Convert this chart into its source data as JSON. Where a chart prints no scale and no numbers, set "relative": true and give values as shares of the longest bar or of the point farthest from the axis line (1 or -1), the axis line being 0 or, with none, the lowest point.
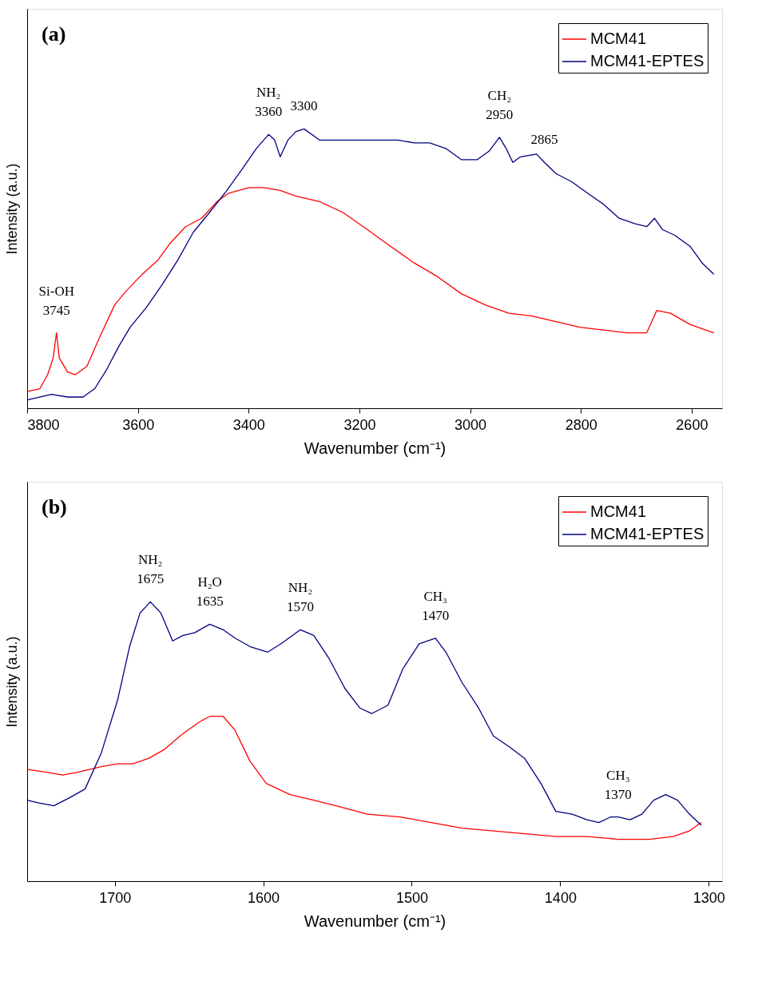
{
  "chart_data": [
    {
      "type": "line",
      "relative": true,
      "xlabel": "Wavenumber (cm⁻¹)",
      "ylabel": "Intensity (a.u.)",
      "xlim": [
        3800,
        2545
      ],
      "xticks": [
        3800,
        3600,
        3400,
        3200,
        3000,
        2800,
        2600
      ],
      "tick_labels": "x",
      "grid": false,
      "legend": "top right",
      "marker": "none",
      "line_style": "solid",
      "annotations": [
        "(a)",
        {
          "text": "Si-OH",
          "x": 3747,
          "y": 0.27
        },
        {
          "text": "3745",
          "x": 3747,
          "y": 0.27
        },
        {
          "text": "NH₂",
          "x": 3364,
          "y": 0.98
        },
        {
          "text": "3360",
          "x": 3364,
          "y": 0.98
        },
        {
          "text": "3300",
          "x": 3300,
          "y": 1.0
        },
        {
          "text": "CH₂",
          "x": 2947,
          "y": 0.97
        },
        {
          "text": "2950",
          "x": 2947,
          "y": 0.97
        },
        {
          "text": "2865",
          "x": 2866,
          "y": 0.88
        }
      ],
      "series": [
        {
          "name": "MCM41",
          "color": "#ff0000",
          "x": [
            3800,
            3777,
            3763,
            3753,
            3747,
            3742,
            3727,
            3713,
            3692,
            3670,
            3642,
            3621,
            3592,
            3564,
            3542,
            3514,
            3485,
            3457,
            3436,
            3400,
            3372,
            3343,
            3315,
            3272,
            3229,
            3186,
            3144,
            3101,
            3058,
            3016,
            2973,
            2930,
            2888,
            2845,
            2802,
            2759,
            2717,
            2681,
            2663,
            2638,
            2603,
            2560
          ],
          "values": [
            0.06,
            0.07,
            0.12,
            0.18,
            0.27,
            0.18,
            0.13,
            0.12,
            0.15,
            0.25,
            0.37,
            0.42,
            0.48,
            0.53,
            0.59,
            0.65,
            0.68,
            0.74,
            0.77,
            0.79,
            0.79,
            0.78,
            0.76,
            0.74,
            0.7,
            0.64,
            0.58,
            0.52,
            0.47,
            0.41,
            0.37,
            0.34,
            0.33,
            0.31,
            0.29,
            0.28,
            0.27,
            0.27,
            0.35,
            0.34,
            0.3,
            0.27
          ]
        },
        {
          "name": "MCM41-EPTES",
          "color": "#000080",
          "x": [
            3800,
            3756,
            3727,
            3699,
            3678,
            3656,
            3635,
            3614,
            3585,
            3557,
            3528,
            3500,
            3471,
            3443,
            3414,
            3386,
            3364,
            3353,
            3343,
            3329,
            3315,
            3300,
            3272,
            3243,
            3215,
            3186,
            3158,
            3130,
            3101,
            3073,
            3044,
            3016,
            2987,
            2966,
            2947,
            2935,
            2923,
            2909,
            2880,
            2866,
            2845,
            2816,
            2788,
            2759,
            2731,
            2702,
            2681,
            2667,
            2653,
            2631,
            2603,
            2581,
            2560
          ],
          "values": [
            0.03,
            0.05,
            0.04,
            0.04,
            0.07,
            0.14,
            0.22,
            0.29,
            0.36,
            0.44,
            0.53,
            0.63,
            0.7,
            0.77,
            0.85,
            0.93,
            0.98,
            0.96,
            0.9,
            0.96,
            0.99,
            1.0,
            0.96,
            0.96,
            0.96,
            0.96,
            0.96,
            0.96,
            0.95,
            0.95,
            0.93,
            0.89,
            0.89,
            0.92,
            0.97,
            0.93,
            0.88,
            0.9,
            0.91,
            0.88,
            0.84,
            0.81,
            0.77,
            0.73,
            0.68,
            0.66,
            0.65,
            0.68,
            0.64,
            0.62,
            0.58,
            0.52,
            0.48
          ]
        }
      ]
    },
    {
      "type": "line",
      "relative": true,
      "xlabel": "Wavenumber (cm⁻¹)",
      "ylabel": "Intensity (a.u.)",
      "xlim": [
        1759,
        1291
      ],
      "xticks": [
        1700,
        1600,
        1500,
        1400,
        1300
      ],
      "tick_labels": "x",
      "grid": false,
      "legend": "top right",
      "marker": "none",
      "line_style": "solid",
      "annotations": [
        "(b)",
        {
          "text": "NH₂",
          "x": 1676,
          "y": 1.0
        },
        {
          "text": "1675",
          "x": 1676,
          "y": 1.0
        },
        {
          "text": "H₂O",
          "x": 1636,
          "y": 0.92
        },
        {
          "text": "1635",
          "x": 1636,
          "y": 0.92
        },
        {
          "text": "NH₂",
          "x": 1575,
          "y": 0.9
        },
        {
          "text": "1570",
          "x": 1575,
          "y": 0.9
        },
        {
          "text": "CH₃",
          "x": 1484,
          "y": 0.87
        },
        {
          "text": "1470",
          "x": 1484,
          "y": 0.87
        },
        {
          "text": "CH₃",
          "x": 1361,
          "y": 0.23
        },
        {
          "text": "1370",
          "x": 1361,
          "y": 0.23
        }
      ],
      "series": [
        {
          "name": "MCM41",
          "color": "#ff0000",
          "x": [
            1759,
            1746,
            1735,
            1725,
            1717,
            1709,
            1698,
            1688,
            1677,
            1667,
            1656,
            1651,
            1643,
            1636,
            1627,
            1619,
            1609,
            1598,
            1582,
            1566,
            1551,
            1530,
            1508,
            1487,
            1466,
            1445,
            1424,
            1403,
            1382,
            1361,
            1340,
            1324,
            1313,
            1305
          ],
          "values": [
            0.4,
            0.39,
            0.38,
            0.39,
            0.4,
            0.41,
            0.42,
            0.42,
            0.44,
            0.47,
            0.52,
            0.54,
            0.57,
            0.59,
            0.59,
            0.54,
            0.43,
            0.35,
            0.31,
            0.29,
            0.27,
            0.24,
            0.23,
            0.21,
            0.19,
            0.18,
            0.17,
            0.16,
            0.16,
            0.15,
            0.15,
            0.16,
            0.18,
            0.21
          ]
        },
        {
          "name": "MCM41-EPTES",
          "color": "#000080",
          "x": [
            1759,
            1751,
            1741,
            1730,
            1720,
            1709,
            1698,
            1690,
            1683,
            1676,
            1669,
            1661,
            1654,
            1646,
            1636,
            1627,
            1619,
            1609,
            1597,
            1588,
            1575,
            1566,
            1556,
            1545,
            1535,
            1527,
            1516,
            1506,
            1495,
            1484,
            1477,
            1466,
            1455,
            1445,
            1434,
            1424,
            1413,
            1403,
            1392,
            1382,
            1374,
            1366,
            1361,
            1353,
            1345,
            1337,
            1329,
            1321,
            1313,
            1305
          ],
          "values": [
            0.29,
            0.28,
            0.27,
            0.3,
            0.33,
            0.46,
            0.65,
            0.84,
            0.96,
            1.0,
            0.96,
            0.86,
            0.88,
            0.89,
            0.92,
            0.9,
            0.87,
            0.84,
            0.82,
            0.85,
            0.9,
            0.88,
            0.8,
            0.69,
            0.62,
            0.6,
            0.63,
            0.76,
            0.85,
            0.87,
            0.82,
            0.71,
            0.62,
            0.52,
            0.48,
            0.44,
            0.35,
            0.25,
            0.24,
            0.22,
            0.21,
            0.23,
            0.23,
            0.22,
            0.24,
            0.29,
            0.31,
            0.29,
            0.24,
            0.2
          ]
        }
      ]
    }
  ]
}
